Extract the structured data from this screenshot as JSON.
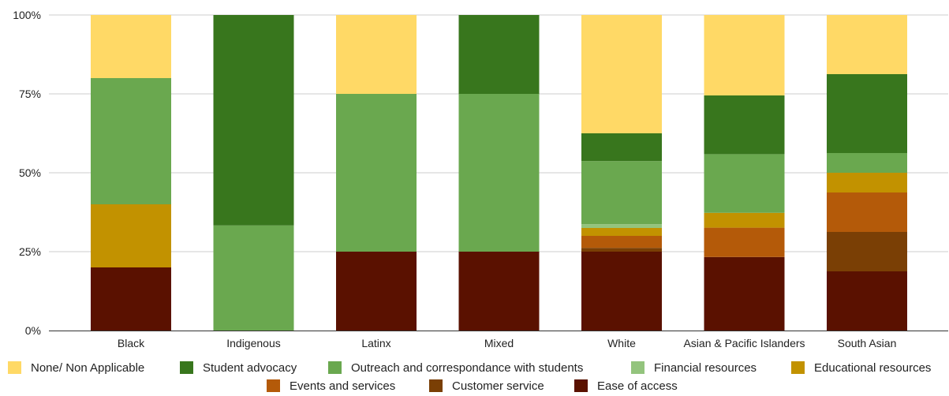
{
  "chart_data": {
    "type": "bar",
    "stacked": true,
    "percent_stacked": true,
    "categories": [
      "Black",
      "Indigenous",
      "Latinx",
      "Mixed",
      "White",
      "Asian & Pacific Islanders",
      "South Asian"
    ],
    "y_ticks": [
      "0%",
      "25%",
      "50%",
      "75%",
      "100%"
    ],
    "ylim": [
      0,
      100
    ],
    "grid": true,
    "legend_position": "bottom",
    "series": [
      {
        "name": "Ease of access",
        "color": "#5a1100",
        "values": [
          20,
          0,
          25,
          25,
          25,
          23.3,
          18.75
        ]
      },
      {
        "name": "Customer service",
        "color": "#7a3f05",
        "values": [
          0,
          0,
          0,
          0,
          1.2,
          0,
          12.5
        ]
      },
      {
        "name": "Events and services",
        "color": "#b45a09",
        "values": [
          0,
          0,
          0,
          0,
          3.8,
          9.3,
          12.5
        ]
      },
      {
        "name": "Educational resources",
        "color": "#c29200",
        "values": [
          20,
          0,
          0,
          0,
          2.5,
          4.7,
          6.25
        ]
      },
      {
        "name": "Financial resources",
        "color": "#93c47d",
        "values": [
          0,
          0,
          0,
          0,
          1.2,
          0,
          0
        ]
      },
      {
        "name": "Outreach and correspondance with students",
        "color": "#6aa84f",
        "values": [
          40,
          33.3,
          50,
          50,
          20,
          18.6,
          6.25
        ]
      },
      {
        "name": "Student advocacy",
        "color": "#38761d",
        "values": [
          0,
          66.7,
          0,
          25,
          8.8,
          18.6,
          25
        ]
      },
      {
        "name": "None/ Non Applicable",
        "color": "#ffd966",
        "values": [
          20,
          0,
          25,
          0,
          37.5,
          25.5,
          18.75
        ]
      }
    ],
    "legend_order": [
      "None/ Non Applicable",
      "Student advocacy",
      "Outreach and correspondance with students",
      "Financial resources",
      "Educational resources",
      "Events and services",
      "Customer service",
      "Ease of access"
    ]
  }
}
